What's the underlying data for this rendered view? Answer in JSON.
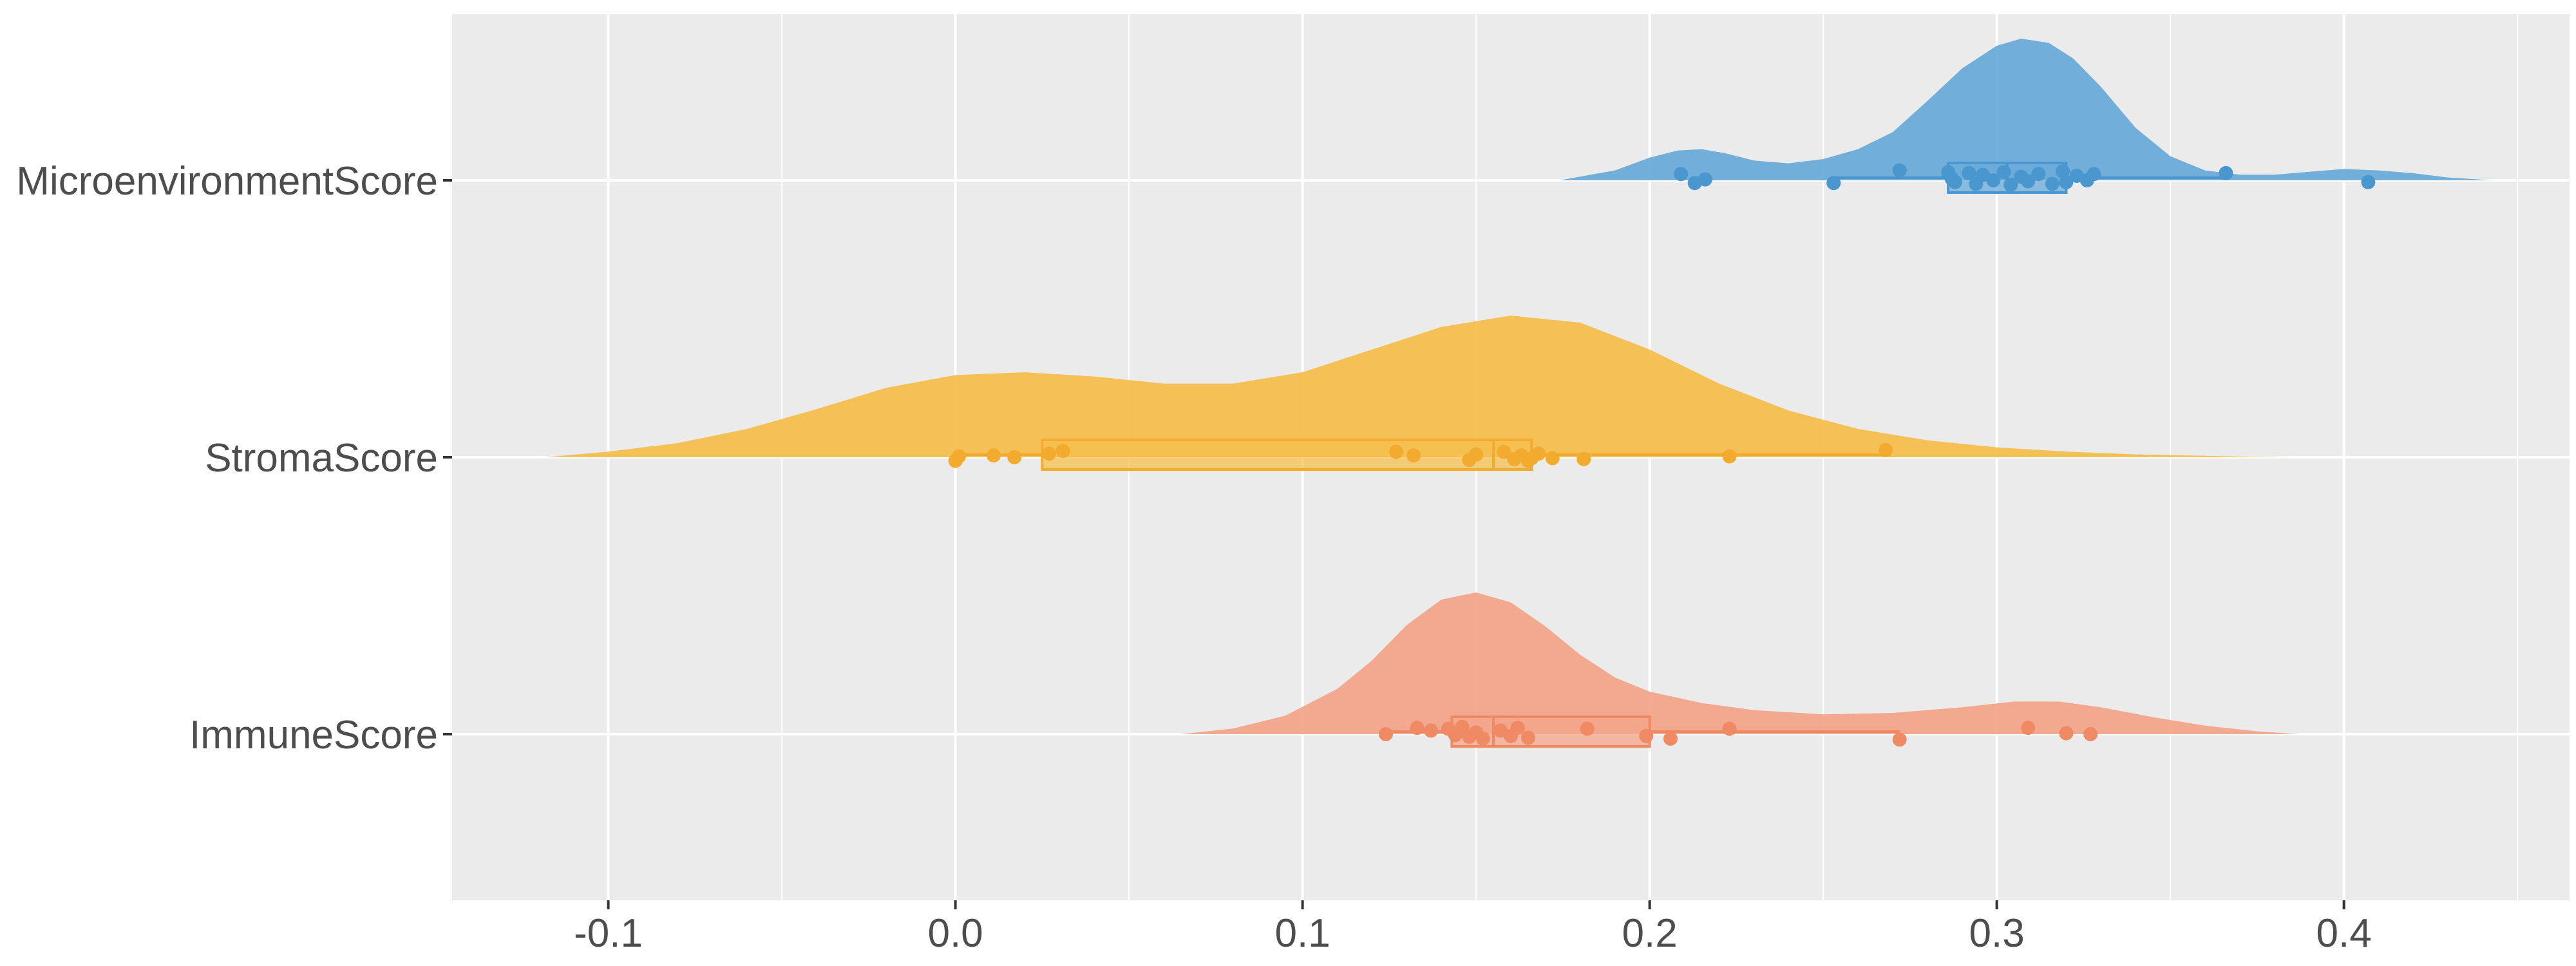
{
  "chart_data": {
    "type": "raincloud",
    "title": "",
    "xlabel": "",
    "ylabel": "",
    "xlim": [
      -0.145,
      0.465
    ],
    "x_ticks": [
      -0.1,
      0.0,
      0.1,
      0.2,
      0.3,
      0.4
    ],
    "x_tick_labels": [
      "-0.1",
      "0.0",
      "0.1",
      "0.2",
      "0.3",
      "0.4"
    ],
    "grid": true,
    "legend": "none",
    "categories": [
      "MicroenvironmentScore",
      "StromaScore",
      "ImmuneScore"
    ],
    "series": [
      {
        "category": "MicroenvironmentScore",
        "color": "#4a96cf",
        "fill": "#6aabd8",
        "density": {
          "x": [
            0.174,
            0.19,
            0.2,
            0.208,
            0.215,
            0.222,
            0.23,
            0.24,
            0.25,
            0.26,
            0.27,
            0.28,
            0.29,
            0.3,
            0.307,
            0.315,
            0.322,
            0.33,
            0.34,
            0.35,
            0.36,
            0.37,
            0.38,
            0.39,
            0.4,
            0.41,
            0.42,
            0.43,
            0.443
          ],
          "y": [
            0.0,
            0.07,
            0.16,
            0.21,
            0.22,
            0.19,
            0.14,
            0.12,
            0.15,
            0.22,
            0.34,
            0.56,
            0.79,
            0.95,
            1.0,
            0.97,
            0.86,
            0.66,
            0.37,
            0.17,
            0.07,
            0.04,
            0.04,
            0.06,
            0.08,
            0.07,
            0.05,
            0.02,
            0.0
          ]
        },
        "box": {
          "q1": 0.286,
          "median": 0.303,
          "q3": 0.32,
          "whisker_low": 0.253,
          "whisker_high": 0.366
        },
        "points": [
          {
            "x": 0.209,
            "j": -0.35
          },
          {
            "x": 0.213,
            "j": 0.15
          },
          {
            "x": 0.216,
            "j": -0.05
          },
          {
            "x": 0.253,
            "j": 0.15
          },
          {
            "x": 0.272,
            "j": -0.55
          },
          {
            "x": 0.286,
            "j": -0.45
          },
          {
            "x": 0.287,
            "j": -0.1
          },
          {
            "x": 0.288,
            "j": 0.1
          },
          {
            "x": 0.292,
            "j": -0.4
          },
          {
            "x": 0.294,
            "j": 0.2
          },
          {
            "x": 0.296,
            "j": -0.3
          },
          {
            "x": 0.299,
            "j": 0.0
          },
          {
            "x": 0.302,
            "j": -0.45
          },
          {
            "x": 0.304,
            "j": 0.25
          },
          {
            "x": 0.307,
            "j": -0.2
          },
          {
            "x": 0.309,
            "j": 0.05
          },
          {
            "x": 0.312,
            "j": -0.35
          },
          {
            "x": 0.316,
            "j": 0.2
          },
          {
            "x": 0.319,
            "j": -0.5
          },
          {
            "x": 0.32,
            "j": 0.1
          },
          {
            "x": 0.323,
            "j": -0.25
          },
          {
            "x": 0.326,
            "j": 0.0
          },
          {
            "x": 0.328,
            "j": -0.35
          },
          {
            "x": 0.366,
            "j": -0.4
          },
          {
            "x": 0.407,
            "j": 0.1
          }
        ]
      },
      {
        "category": "StromaScore",
        "color": "#f2ab2e",
        "fill": "#f5bf4f",
        "density": {
          "x": [
            -0.118,
            -0.1,
            -0.08,
            -0.06,
            -0.04,
            -0.02,
            0.0,
            0.02,
            0.04,
            0.06,
            0.08,
            0.1,
            0.12,
            0.14,
            0.16,
            0.18,
            0.2,
            0.22,
            0.24,
            0.26,
            0.28,
            0.3,
            0.32,
            0.34,
            0.36,
            0.385
          ],
          "y": [
            0.0,
            0.04,
            0.1,
            0.2,
            0.34,
            0.49,
            0.58,
            0.6,
            0.57,
            0.52,
            0.52,
            0.6,
            0.76,
            0.92,
            1.0,
            0.95,
            0.76,
            0.52,
            0.33,
            0.2,
            0.12,
            0.07,
            0.04,
            0.02,
            0.01,
            0.0
          ]
        },
        "box": {
          "q1": 0.025,
          "median": 0.155,
          "q3": 0.166,
          "whisker_low": 0.0,
          "whisker_high": 0.268
        },
        "points": [
          {
            "x": 0.0,
            "j": 0.2
          },
          {
            "x": 0.001,
            "j": -0.05
          },
          {
            "x": 0.011,
            "j": -0.1
          },
          {
            "x": 0.017,
            "j": 0.0
          },
          {
            "x": 0.027,
            "j": -0.2
          },
          {
            "x": 0.031,
            "j": -0.35
          },
          {
            "x": 0.127,
            "j": -0.3
          },
          {
            "x": 0.132,
            "j": -0.1
          },
          {
            "x": 0.148,
            "j": 0.15
          },
          {
            "x": 0.15,
            "j": -0.15
          },
          {
            "x": 0.158,
            "j": -0.3
          },
          {
            "x": 0.161,
            "j": 0.1
          },
          {
            "x": 0.163,
            "j": -0.1
          },
          {
            "x": 0.165,
            "j": 0.2
          },
          {
            "x": 0.166,
            "j": 0.05
          },
          {
            "x": 0.168,
            "j": -0.2
          },
          {
            "x": 0.172,
            "j": 0.05
          },
          {
            "x": 0.181,
            "j": 0.1
          },
          {
            "x": 0.223,
            "j": -0.05
          },
          {
            "x": 0.268,
            "j": -0.4
          }
        ]
      },
      {
        "category": "ImmuneScore",
        "color": "#ef8a64",
        "fill": "#f3a58a",
        "density": {
          "x": [
            0.065,
            0.08,
            0.095,
            0.11,
            0.12,
            0.13,
            0.14,
            0.15,
            0.16,
            0.17,
            0.18,
            0.19,
            0.2,
            0.215,
            0.23,
            0.25,
            0.27,
            0.29,
            0.305,
            0.318,
            0.33,
            0.345,
            0.36,
            0.375,
            0.387
          ],
          "y": [
            0.0,
            0.04,
            0.13,
            0.32,
            0.52,
            0.77,
            0.95,
            1.0,
            0.93,
            0.76,
            0.56,
            0.4,
            0.3,
            0.22,
            0.17,
            0.14,
            0.15,
            0.19,
            0.23,
            0.23,
            0.19,
            0.12,
            0.06,
            0.02,
            0.0
          ]
        },
        "box": {
          "q1": 0.143,
          "median": 0.155,
          "q3": 0.2,
          "whisker_low": 0.124,
          "whisker_high": 0.272
        },
        "points": [
          {
            "x": 0.124,
            "j": 0.0
          },
          {
            "x": 0.133,
            "j": -0.35
          },
          {
            "x": 0.137,
            "j": -0.2
          },
          {
            "x": 0.142,
            "j": -0.3
          },
          {
            "x": 0.144,
            "j": 0.05
          },
          {
            "x": 0.146,
            "j": -0.4
          },
          {
            "x": 0.148,
            "j": 0.15
          },
          {
            "x": 0.15,
            "j": -0.1
          },
          {
            "x": 0.152,
            "j": 0.25
          },
          {
            "x": 0.157,
            "j": -0.2
          },
          {
            "x": 0.16,
            "j": 0.1
          },
          {
            "x": 0.162,
            "j": -0.35
          },
          {
            "x": 0.165,
            "j": 0.2
          },
          {
            "x": 0.182,
            "j": -0.3
          },
          {
            "x": 0.199,
            "j": 0.1
          },
          {
            "x": 0.206,
            "j": 0.25
          },
          {
            "x": 0.223,
            "j": -0.3
          },
          {
            "x": 0.272,
            "j": 0.3
          },
          {
            "x": 0.309,
            "j": -0.35
          },
          {
            "x": 0.32,
            "j": -0.05
          },
          {
            "x": 0.327,
            "j": 0.0
          }
        ]
      }
    ]
  }
}
